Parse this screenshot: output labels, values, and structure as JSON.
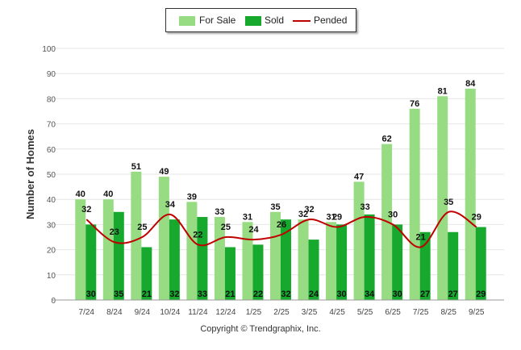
{
  "chart_data": {
    "type": "bar",
    "ylabel": "Number of Homes",
    "xlabel": "",
    "ylim": [
      0,
      100
    ],
    "yticks": [
      0,
      10,
      20,
      30,
      40,
      50,
      60,
      70,
      80,
      90,
      100
    ],
    "grid": true,
    "legend_position": "top-center",
    "categories": [
      "7/24",
      "8/24",
      "9/24",
      "10/24",
      "11/24",
      "12/24",
      "1/25",
      "2/25",
      "3/25",
      "4/25",
      "5/25",
      "6/25",
      "7/25",
      "8/25",
      "9/25"
    ],
    "series": [
      {
        "name": "For Sale",
        "kind": "bar",
        "color": "#97dc82",
        "values": [
          40,
          40,
          51,
          49,
          39,
          33,
          31,
          35,
          32,
          31,
          47,
          62,
          76,
          81,
          84
        ]
      },
      {
        "name": "Sold",
        "kind": "bar",
        "color": "#17a82e",
        "values": [
          30,
          35,
          21,
          32,
          33,
          21,
          22,
          32,
          24,
          30,
          34,
          30,
          27,
          27,
          29
        ]
      },
      {
        "name": "Pended",
        "kind": "line",
        "color": "#c00000",
        "values": [
          32,
          23,
          25,
          34,
          22,
          25,
          24,
          26,
          32,
          29,
          33,
          30,
          21,
          35,
          29
        ]
      }
    ]
  },
  "footer": {
    "credit": "Copyright © Trendgraphix, Inc."
  }
}
